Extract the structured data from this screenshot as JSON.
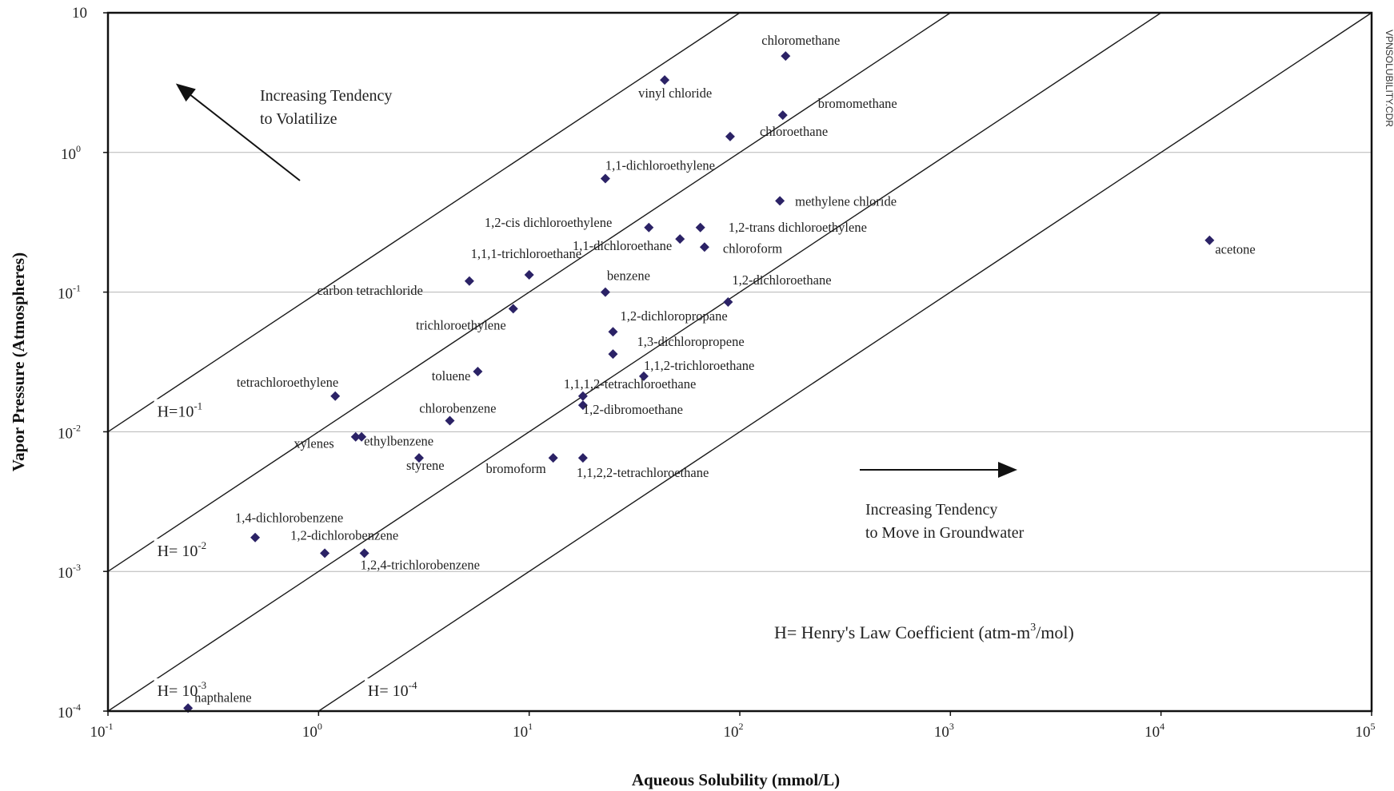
{
  "chart_data": {
    "type": "scatter",
    "xlabel": "Aqueous Solubility (mmol/L)",
    "ylabel": "Vapor Pressure (Atmospheres)",
    "x_scale": "log",
    "y_scale": "log",
    "xlim": [
      0.1,
      100000
    ],
    "ylim": [
      0.0001,
      10
    ],
    "x_ticks": [
      {
        "base": "10",
        "exp": "-1",
        "value": 0.1
      },
      {
        "base": "10",
        "exp": "0",
        "value": 1
      },
      {
        "base": "10",
        "exp": "1",
        "value": 10
      },
      {
        "base": "10",
        "exp": "2",
        "value": 100
      },
      {
        "base": "10",
        "exp": "3",
        "value": 1000
      },
      {
        "base": "10",
        "exp": "4",
        "value": 10000
      },
      {
        "base": "10",
        "exp": "5",
        "value": 100000
      }
    ],
    "y_ticks": [
      {
        "base": "10",
        "exp": "-4",
        "value": 0.0001
      },
      {
        "base": "10",
        "exp": "-3",
        "value": 0.001
      },
      {
        "base": "10",
        "exp": "-2",
        "value": 0.01
      },
      {
        "base": "10",
        "exp": "-1",
        "value": 0.1
      },
      {
        "base": "10",
        "exp": "0",
        "value": 1
      },
      {
        "base": "10",
        "exp": "",
        "value": 10,
        "plain": "10"
      }
    ],
    "horizontal_grid": true,
    "marker_color": "#2b2266",
    "henry_lines": [
      {
        "label_base": "H=",
        "label_exp": "-1",
        "H": 0.1
      },
      {
        "label_base": "H= ",
        "label_exp": "-2",
        "H": 0.01
      },
      {
        "label_base": "H= ",
        "label_exp": "-3",
        "H": 0.001
      },
      {
        "label_base": "H= ",
        "label_exp": "-4",
        "H": 0.0001
      }
    ],
    "points": [
      {
        "name": "chloromethane",
        "x": 165,
        "y": 4.9
      },
      {
        "name": "vinyl chloride",
        "x": 44,
        "y": 3.3
      },
      {
        "name": "bromomethane",
        "x": 160,
        "y": 1.85
      },
      {
        "name": "chloroethane",
        "x": 90,
        "y": 1.3
      },
      {
        "name": "1,1-dichloroethylene",
        "x": 23,
        "y": 0.65
      },
      {
        "name": "methylene chloride",
        "x": 155,
        "y": 0.45
      },
      {
        "name": "1,2-cis dichloroethylene",
        "x": 37,
        "y": 0.29
      },
      {
        "name": "1,2-trans dichloroethylene",
        "x": 65,
        "y": 0.29
      },
      {
        "name": "1,1-dichloroethane",
        "x": 52,
        "y": 0.24
      },
      {
        "name": "chloroform",
        "x": 68,
        "y": 0.21
      },
      {
        "name": "acetone",
        "x": 17000,
        "y": 0.235
      },
      {
        "name": "1,1,1-trichloroethane",
        "x": 10,
        "y": 0.133
      },
      {
        "name": "carbon tetrachloride",
        "x": 5.2,
        "y": 0.12
      },
      {
        "name": "benzene",
        "x": 23,
        "y": 0.1
      },
      {
        "name": "1,2-dichloroethane",
        "x": 88,
        "y": 0.085
      },
      {
        "name": "trichloroethylene",
        "x": 8.4,
        "y": 0.076
      },
      {
        "name": "1,2-dichloropropane",
        "x": 25,
        "y": 0.052
      },
      {
        "name": "1,3-dichloropropene",
        "x": 25,
        "y": 0.036
      },
      {
        "name": "toluene",
        "x": 5.7,
        "y": 0.027
      },
      {
        "name": "1,1,2-trichloroethane",
        "x": 35,
        "y": 0.025
      },
      {
        "name": "tetrachloroethylene",
        "x": 1.2,
        "y": 0.018
      },
      {
        "name": "1,1,1,2-tetrachloroethane",
        "x": 18,
        "y": 0.018
      },
      {
        "name": "1,2-dibromoethane",
        "x": 18,
        "y": 0.0155
      },
      {
        "name": "chlorobenzene",
        "x": 4.2,
        "y": 0.012
      },
      {
        "name": "xylenes",
        "x": 1.5,
        "y": 0.0092
      },
      {
        "name": "ethylbenzene",
        "x": 1.6,
        "y": 0.0092
      },
      {
        "name": "styrene",
        "x": 3.0,
        "y": 0.0065
      },
      {
        "name": "bromoform",
        "x": 13,
        "y": 0.0065
      },
      {
        "name": "1,1,2,2-tetrachloroethane",
        "x": 18,
        "y": 0.0065
      },
      {
        "name": "1,4-dichlorobenzene",
        "x": 0.5,
        "y": 0.00175
      },
      {
        "name": "1,2-dichlorobenzene",
        "x": 1.07,
        "y": 0.00135
      },
      {
        "name": "1,2,4-trichlorobenzene",
        "x": 1.65,
        "y": 0.00135
      },
      {
        "name": "napthalene",
        "x": 0.24,
        "y": 0.000105
      }
    ],
    "annotations": {
      "volatilize_line1": "Increasing Tendency",
      "volatilize_line2": "to Volatilize",
      "groundwater_line1": "Increasing Tendency",
      "groundwater_line2": "to Move in Groundwater",
      "henry_note_base": "H= Henry's Law Coefficient (atm-m",
      "henry_note_exp": "3",
      "henry_note_tail": "/mol)"
    },
    "side_label": "VPNSOLUBILITY.CDR"
  }
}
